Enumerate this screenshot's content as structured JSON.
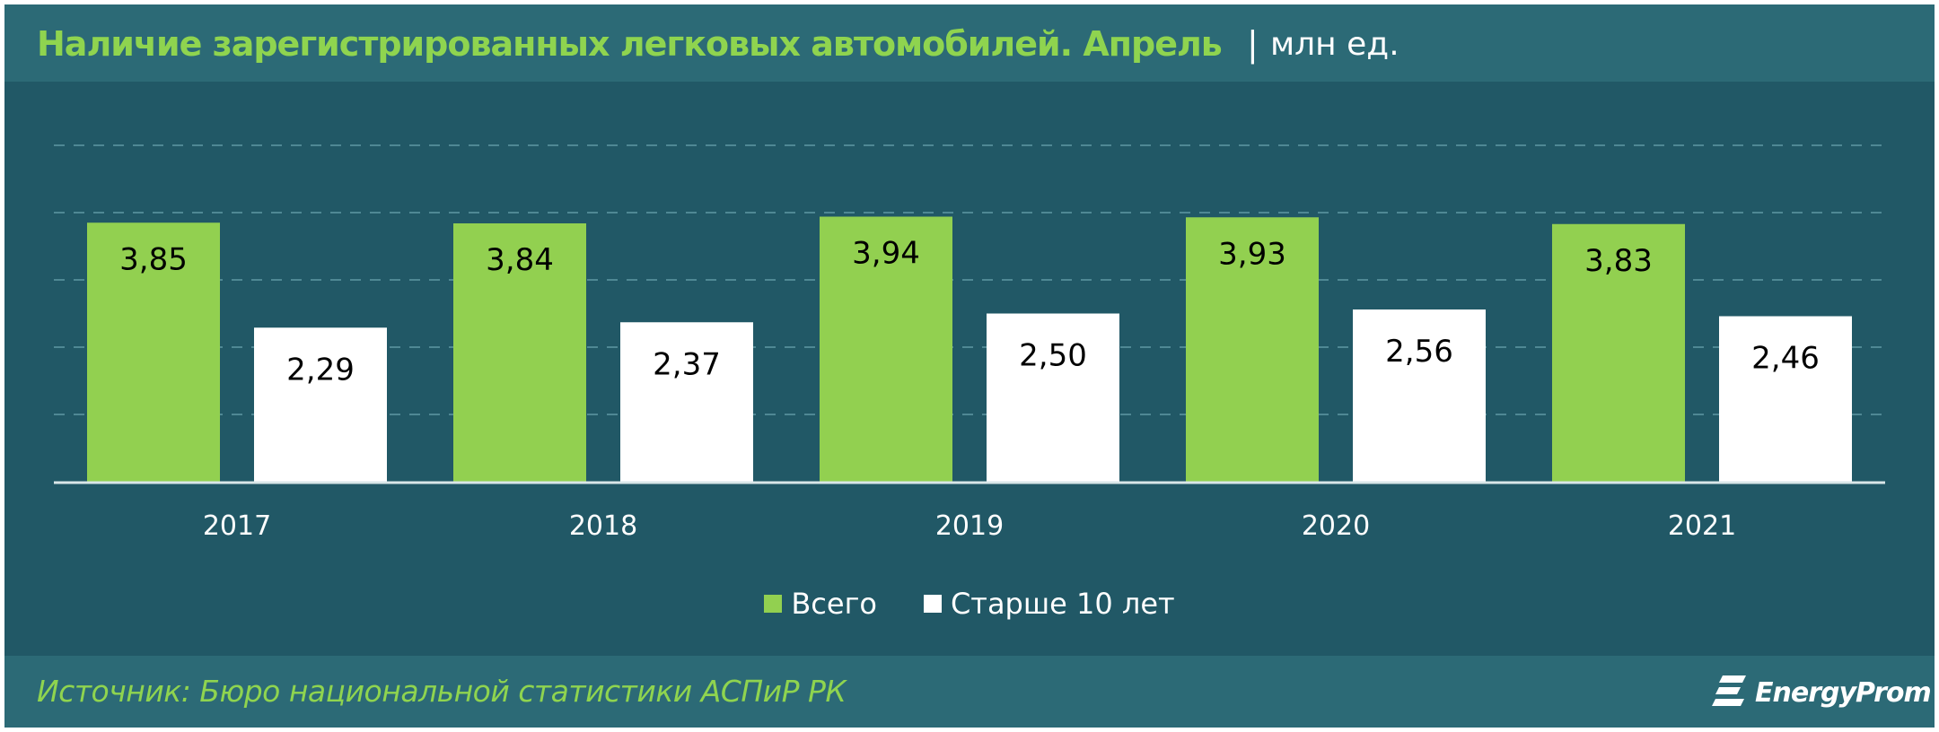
{
  "header": {
    "title": "Наличие зарегистрированных легковых автомобилей. Апрель",
    "separator": "|",
    "unit": "млн ед."
  },
  "footer": {
    "source": "Источник: Бюро национальной  статистики АСПиР РК",
    "logo": "EnergyProm"
  },
  "colors": {
    "header_bg": "#2c6a76",
    "body_bg": "#215866",
    "green": "#92d050",
    "white": "#ffffff"
  },
  "chart_data": {
    "type": "bar",
    "categories": [
      "2017",
      "2018",
      "2019",
      "2020",
      "2021"
    ],
    "series": [
      {
        "name": "Всего",
        "color": "#92d050",
        "values": [
          3.85,
          3.84,
          3.94,
          3.93,
          3.83
        ],
        "labels": [
          "3,85",
          "3,84",
          "3,94",
          "3,93",
          "3,83"
        ]
      },
      {
        "name": "Старше 10 лет",
        "color": "#ffffff",
        "values": [
          2.29,
          2.37,
          2.5,
          2.56,
          2.46
        ],
        "labels": [
          "2,29",
          "2,37",
          "2,50",
          "2,56",
          "2,46"
        ]
      }
    ],
    "ylim": [
      0,
      5
    ],
    "grid": true,
    "legend": "bottom-center"
  }
}
